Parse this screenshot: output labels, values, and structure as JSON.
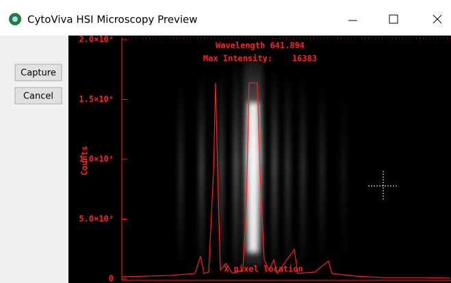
{
  "window": {
    "title": "CytoViva HSI Microscopy Preview",
    "buttons": [
      "Capture",
      "Cancel"
    ]
  },
  "chart_data": {
    "type": "line",
    "annotations": [
      "Wavelength 641.894",
      "Max Intensity:    16383"
    ],
    "ylabel": "Counts",
    "xlabel": "X pixel location",
    "color": "#ff2020",
    "x": [
      0,
      72,
      107,
      115,
      120,
      127,
      134,
      137,
      140,
      144,
      152,
      162,
      177,
      182,
      186,
      198,
      202,
      208,
      215,
      222,
      227,
      252,
      257,
      282,
      302,
      307,
      342,
      382,
      442,
      480
    ],
    "values": [
      170,
      290,
      460,
      1900,
      460,
      570,
      9000,
      16383,
      9000,
      740,
      1300,
      460,
      740,
      6200,
      16383,
      16383,
      9000,
      1600,
      740,
      1600,
      460,
      2460,
      460,
      570,
      1490,
      460,
      230,
      110,
      110,
      60
    ],
    "xlim": [
      0,
      480
    ],
    "ylim": [
      0,
      20000
    ],
    "yticks": [
      0,
      {
        "value": 5000,
        "label": "5.0×10³"
      },
      {
        "value": 10000,
        "label": "1.0×10⁴"
      },
      {
        "value": 15000,
        "label": "1.5×10⁴"
      },
      {
        "value": 20000,
        "label": "2.0×10⁴"
      }
    ]
  }
}
